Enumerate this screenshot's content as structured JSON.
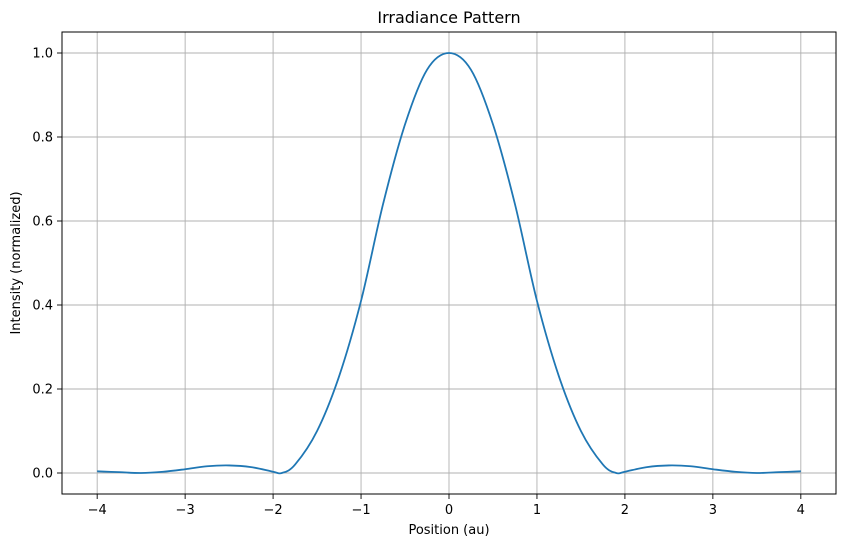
{
  "chart_data": {
    "type": "line",
    "title": "Irradiance Pattern",
    "xlabel": "Position (au)",
    "ylabel": "Intensity (normalized)",
    "xlim": [
      -4.4,
      4.4
    ],
    "ylim": [
      -0.05,
      1.05
    ],
    "x_ticks": [
      -4,
      -3,
      -2,
      -1,
      0,
      1,
      2,
      3,
      4
    ],
    "x_tick_labels": [
      "−4",
      "−3",
      "−2",
      "−1",
      "0",
      "1",
      "2",
      "3",
      "4"
    ],
    "y_ticks": [
      0.0,
      0.2,
      0.4,
      0.6,
      0.8,
      1.0
    ],
    "y_tick_labels": [
      "0.0",
      "0.2",
      "0.4",
      "0.6",
      "0.8",
      "1.0"
    ],
    "grid": true,
    "series": [
      {
        "color": "#1f77b4",
        "x": [
          -4.0,
          -3.75,
          -3.5,
          -3.25,
          -3.0,
          -2.75,
          -2.5,
          -2.25,
          -2.0,
          -1.9,
          -1.75,
          -1.5,
          -1.25,
          -1.0,
          -0.75,
          -0.5,
          -0.25,
          0.0,
          0.25,
          0.5,
          0.75,
          1.0,
          1.25,
          1.5,
          1.75,
          1.9,
          2.0,
          2.25,
          2.5,
          2.75,
          3.0,
          3.25,
          3.5,
          3.75,
          4.0
        ],
        "y": [
          0.004,
          0.002,
          0.0,
          0.003,
          0.009,
          0.016,
          0.018,
          0.014,
          0.003,
          0.0,
          0.02,
          0.1,
          0.23,
          0.41,
          0.64,
          0.83,
          0.96,
          1.0,
          0.96,
          0.83,
          0.64,
          0.41,
          0.23,
          0.1,
          0.02,
          0.0,
          0.003,
          0.014,
          0.018,
          0.016,
          0.009,
          0.003,
          0.0,
          0.002,
          0.004
        ]
      }
    ]
  }
}
